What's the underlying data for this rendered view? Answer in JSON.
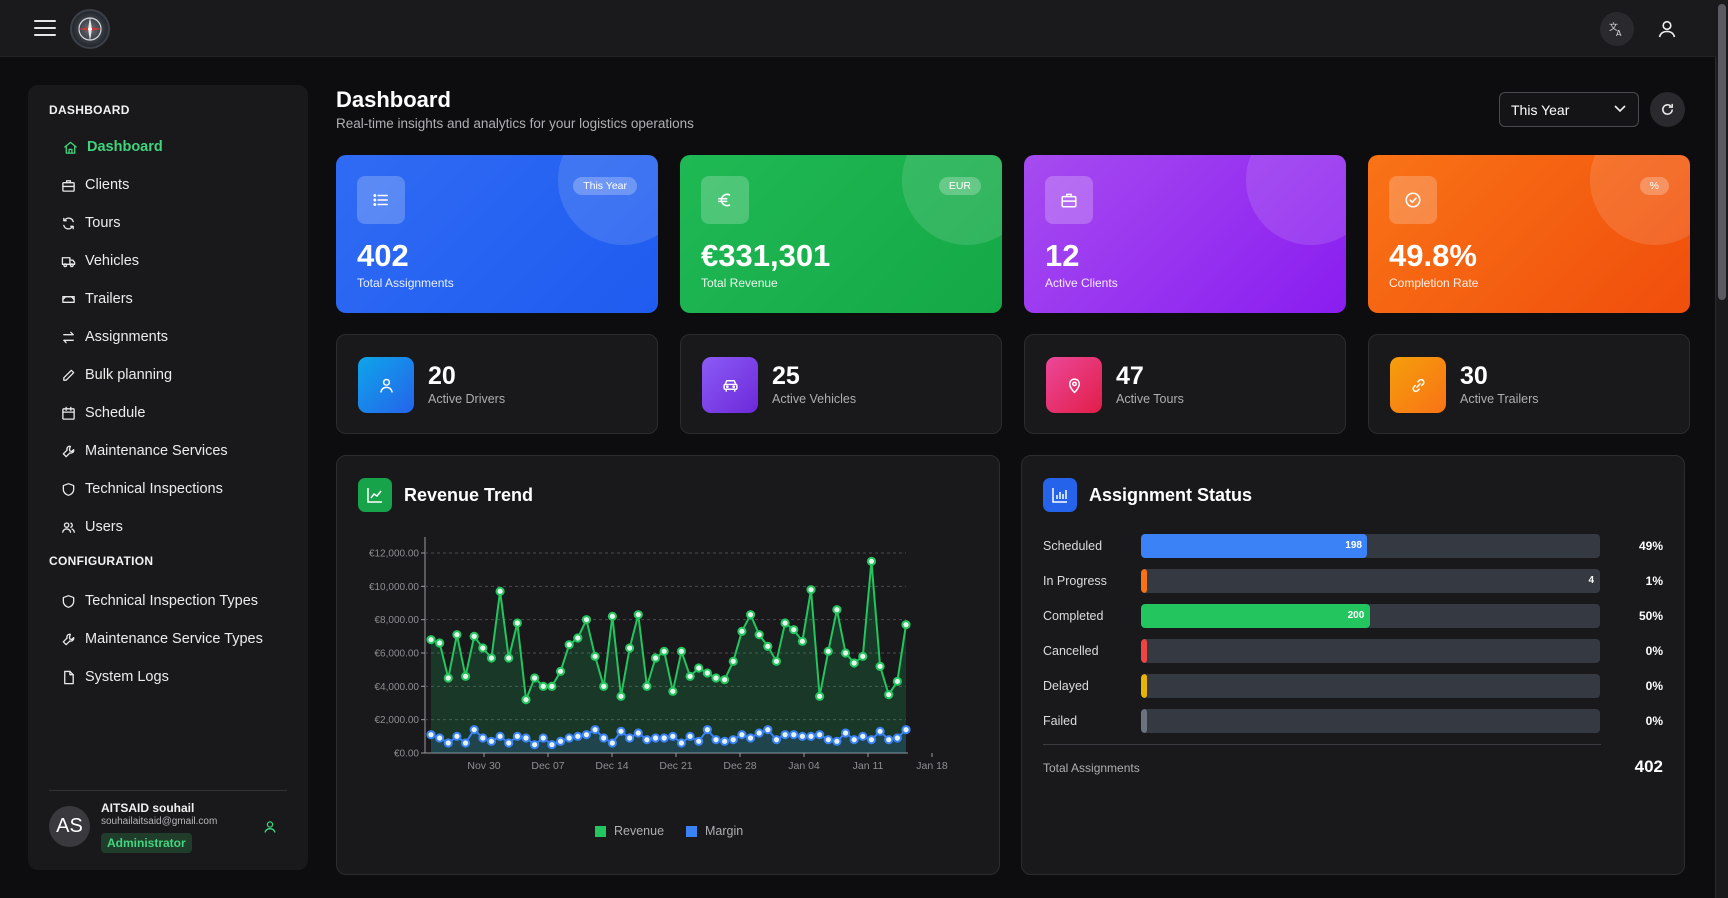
{
  "topbar": {
    "menu_icon": "hamburger-icon",
    "logo": "compass-logo",
    "translate_icon": "translate-icon",
    "user_icon": "user-icon"
  },
  "sidebar": {
    "section_dashboard": "DASHBOARD",
    "section_config": "CONFIGURATION",
    "items": [
      {
        "label": "Dashboard",
        "icon": "home-icon",
        "active": true
      },
      {
        "label": "Clients",
        "icon": "briefcase-icon"
      },
      {
        "label": "Tours",
        "icon": "refresh-icon"
      },
      {
        "label": "Vehicles",
        "icon": "truck-icon"
      },
      {
        "label": "Trailers",
        "icon": "trailer-icon"
      },
      {
        "label": "Assignments",
        "icon": "swap-icon"
      },
      {
        "label": "Bulk planning",
        "icon": "pen-icon"
      },
      {
        "label": "Schedule",
        "icon": "calendar-icon"
      },
      {
        "label": "Maintenance Services",
        "icon": "wrench-icon"
      },
      {
        "label": "Technical Inspections",
        "icon": "shield-icon"
      },
      {
        "label": "Users",
        "icon": "users-icon"
      }
    ],
    "config_items": [
      {
        "label": "Technical Inspection Types",
        "icon": "shield-icon"
      },
      {
        "label": "Maintenance Service Types",
        "icon": "wrench-icon"
      },
      {
        "label": "System Logs",
        "icon": "file-icon"
      }
    ],
    "user": {
      "initials": "AS",
      "name": "AITSAID souhail",
      "email": "souhailaitsaid@gmail.com",
      "role": "Administrator"
    }
  },
  "header": {
    "title": "Dashboard",
    "subtitle": "Real-time insights and analytics for your logistics operations",
    "period": "This Year"
  },
  "stats": [
    {
      "value": "402",
      "label": "Total Assignments",
      "badge": "This Year",
      "icon": "list-icon",
      "color": "#2563eb"
    },
    {
      "value": "€331,301",
      "label": "Total Revenue",
      "badge": "EUR",
      "icon": "euro-icon",
      "color": "#16a34a"
    },
    {
      "value": "12",
      "label": "Active Clients",
      "badge": "",
      "icon": "briefcase-icon",
      "color": "#9333ea"
    },
    {
      "value": "49.8%",
      "label": "Completion Rate",
      "badge": "%",
      "icon": "check-circle-icon",
      "color": "#ea580c"
    }
  ],
  "mini_stats": [
    {
      "value": "20",
      "label": "Active Drivers",
      "icon": "user-icon",
      "color": "#0ea5e9"
    },
    {
      "value": "25",
      "label": "Active Vehicles",
      "icon": "car-icon",
      "color": "#7c3aed"
    },
    {
      "value": "47",
      "label": "Active Tours",
      "icon": "pin-icon",
      "color": "#e11d48"
    },
    {
      "value": "30",
      "label": "Active Trailers",
      "icon": "link-icon",
      "color": "#f97316"
    }
  ],
  "revenue_panel": {
    "title": "Revenue Trend",
    "icon": "chart-line-icon"
  },
  "status_panel": {
    "title": "Assignment Status",
    "icon": "bar-chart-icon",
    "rows": [
      {
        "label": "Scheduled",
        "count": "198",
        "pct": "49%",
        "fraction": 0.493,
        "color": "#3b82f6"
      },
      {
        "label": "In Progress",
        "count": "4",
        "pct": "1%",
        "fraction": 0.01,
        "color": "#f97316"
      },
      {
        "label": "Completed",
        "count": "200",
        "pct": "50%",
        "fraction": 0.498,
        "color": "#22c55e"
      },
      {
        "label": "Cancelled",
        "count": "",
        "pct": "0%",
        "fraction": 0,
        "color": "#ef4444"
      },
      {
        "label": "Delayed",
        "count": "",
        "pct": "0%",
        "fraction": 0,
        "color": "#eab308"
      },
      {
        "label": "Failed",
        "count": "",
        "pct": "0%",
        "fraction": 0,
        "color": "#6b7280"
      }
    ],
    "total_label": "Total Assignments",
    "total_value": "402"
  },
  "chart_data": {
    "type": "area",
    "title": "",
    "xlabel": "",
    "ylabel": "",
    "ylim": [
      0,
      12000
    ],
    "y_ticks": [
      "€0.00",
      "€2,000.00",
      "€4,000.00",
      "€6,000.00",
      "€8,000.00",
      "€10,000.00",
      "€12,000.00"
    ],
    "x_ticks": [
      "Nov 30",
      "Dec 07",
      "Dec 14",
      "Dec 21",
      "Dec 28",
      "Jan 04",
      "Jan 11",
      "Jan 18"
    ],
    "grid": true,
    "legend": "bottom",
    "series": [
      {
        "name": "Revenue",
        "color": "#22c55e",
        "values": [
          6800,
          6600,
          4500,
          7100,
          4600,
          7000,
          6300,
          5700,
          9700,
          5700,
          7800,
          3200,
          4500,
          4000,
          4000,
          4900,
          6500,
          6900,
          8000,
          5800,
          4000,
          8200,
          3400,
          6300,
          8300,
          4000,
          5700,
          6100,
          3700,
          6100,
          4600,
          5100,
          4800,
          4500,
          4400,
          5500,
          7300,
          8300,
          7100,
          6400,
          5500,
          7800,
          7400,
          6700,
          9800,
          3400,
          6100,
          8600,
          6000,
          5400,
          5800,
          11500,
          5200,
          3500,
          4300,
          7700
        ],
        "color_fill": "rgba(34,197,94,0.18)"
      },
      {
        "name": "Margin",
        "color": "#3b82f6",
        "values": [
          1100,
          900,
          600,
          1000,
          600,
          1400,
          900,
          700,
          1000,
          600,
          1000,
          900,
          500,
          900,
          500,
          700,
          900,
          1000,
          1100,
          1400,
          900,
          600,
          1300,
          900,
          1200,
          800,
          900,
          900,
          1000,
          600,
          1000,
          700,
          1400,
          800,
          700,
          800,
          1100,
          900,
          1200,
          1400,
          800,
          1100,
          1100,
          1000,
          1000,
          1100,
          800,
          700,
          1200,
          800,
          1000,
          800,
          1300,
          800,
          900,
          1400
        ],
        "color_fill": "rgba(59,130,246,0.18)"
      }
    ]
  }
}
